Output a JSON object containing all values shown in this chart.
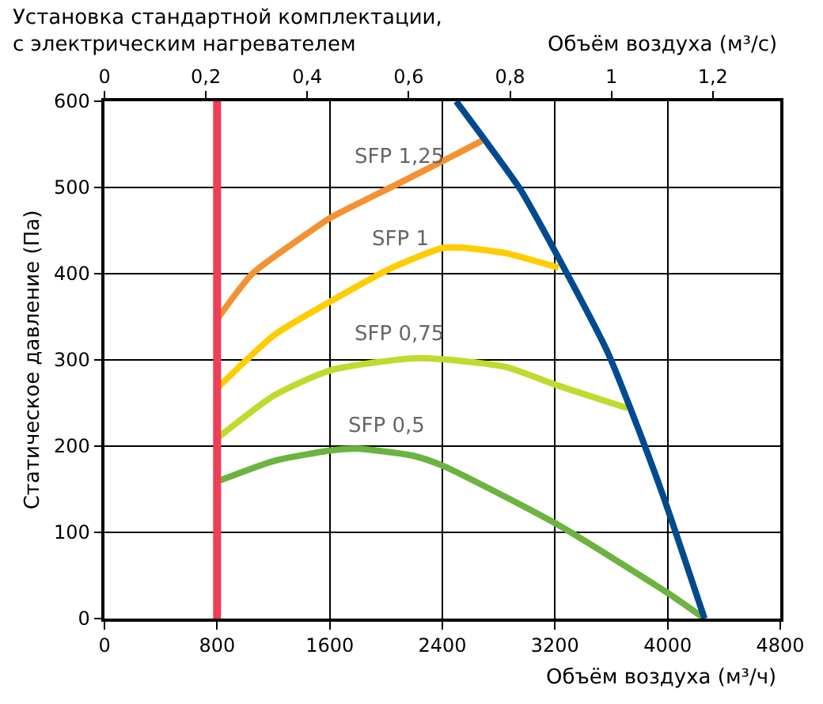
{
  "chart_data": {
    "type": "line",
    "title": "Установка стандартной комплектации,\nс электрическим нагревателем",
    "xlabel": "Объём воздуха (м³/ч)",
    "x2label": "Объём воздуха (м³/с)",
    "ylabel": "Статическое давление (Па)",
    "xlim": [
      0,
      4800
    ],
    "xticks": [
      0,
      800,
      1600,
      2400,
      3200,
      4000,
      4800
    ],
    "x2lim": [
      0,
      1.333
    ],
    "x2ticks": [
      0,
      {
        "value": 0.2,
        "label": "0,2"
      },
      {
        "value": 0.4,
        "label": "0,4"
      },
      {
        "value": 0.6,
        "label": "0,6"
      },
      {
        "value": 0.8,
        "label": "0,8"
      },
      1,
      {
        "value": 1.2,
        "label": "1,2"
      }
    ],
    "ylim": [
      0,
      600
    ],
    "yticks": [
      0,
      100,
      200,
      300,
      400,
      500,
      600
    ],
    "grid": true,
    "legend": false,
    "marker": "none",
    "line_style": "solid",
    "ref_lines": [
      {
        "axis": "x",
        "value": 800,
        "label": null,
        "color": "#ef3e55"
      }
    ],
    "series": [
      {
        "name": "SFP 1,25",
        "color": "#f39233",
        "x": [
          800,
          1050,
          1426,
          1607,
          2044,
          2407,
          2680
        ],
        "values": [
          347,
          400,
          445,
          465,
          501,
          531,
          554
        ]
      },
      {
        "name": "SFP 1",
        "color": "#ffcc00",
        "x": [
          800,
          1207,
          1607,
          2044,
          2407,
          2553,
          2844,
          3226
        ],
        "values": [
          267,
          329,
          368,
          407,
          430,
          430,
          424,
          407
        ]
      },
      {
        "name": "SFP 0,75",
        "color": "#c2d92e",
        "x": [
          800,
          1207,
          1607,
          2225,
          2844,
          3207,
          3716
        ],
        "values": [
          209,
          259,
          288,
          302,
          292,
          271,
          244
        ]
      },
      {
        "name": "SFP 0,5",
        "color": "#6cb33f",
        "x": [
          800,
          1207,
          1607,
          1789,
          2189,
          2407,
          3207,
          4007,
          4262
        ],
        "values": [
          159,
          183,
          195,
          197,
          189,
          177,
          110,
          29,
          0
        ]
      },
      {
        "color": "#004a8f",
        "x": [
          2498,
          2698,
          2953,
          3243,
          3571,
          3735,
          3971,
          4262
        ],
        "values": [
          600,
          556,
          498,
          413,
          310,
          244,
          141,
          0
        ]
      }
    ]
  }
}
